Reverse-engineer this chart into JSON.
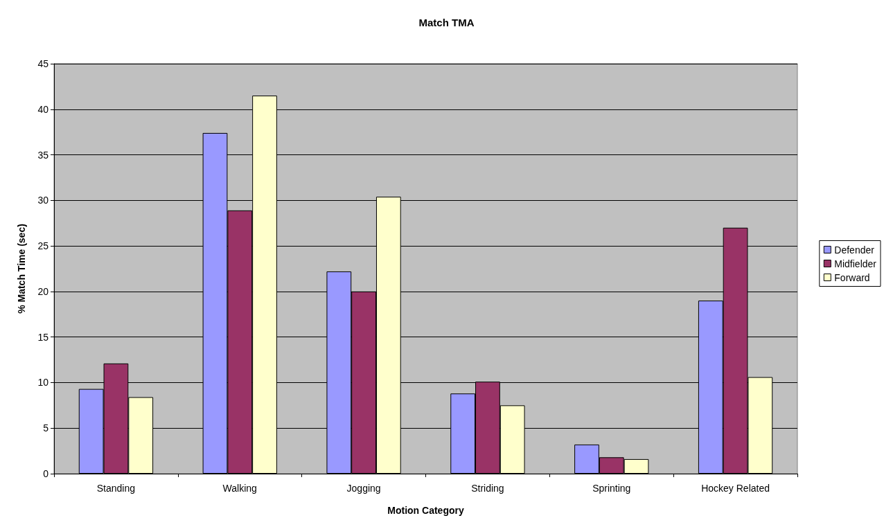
{
  "chart_data": {
    "type": "bar",
    "title": "Match TMA",
    "xlabel": "Motion Category",
    "ylabel": "% Match Time (sec)",
    "categories": [
      "Standing",
      "Walking",
      "Jogging",
      "Striding",
      "Sprinting",
      "Hockey Related"
    ],
    "series": [
      {
        "name": "Defender",
        "color": "#9999ff",
        "values": [
          9.3,
          37.4,
          22.2,
          8.8,
          3.2,
          19.0
        ]
      },
      {
        "name": "Midfielder",
        "color": "#993366",
        "values": [
          12.1,
          28.9,
          20.0,
          10.1,
          1.8,
          27.0
        ]
      },
      {
        "name": "Forward",
        "color": "#ffffcc",
        "values": [
          8.4,
          41.5,
          30.4,
          7.5,
          1.6,
          10.6
        ]
      }
    ],
    "ylim": [
      0,
      45
    ],
    "yticks": [
      0,
      5,
      10,
      15,
      20,
      25,
      30,
      35,
      40,
      45
    ],
    "grid": "y",
    "legend": "right"
  }
}
